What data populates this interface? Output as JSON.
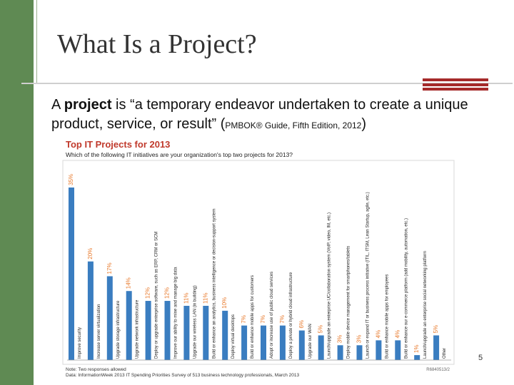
{
  "slide": {
    "title": "What Is a Project?",
    "body_lead": "A ",
    "body_bold": "project",
    "body_rest": " is “a temporary endeavor undertaken to create a unique product, service, or result” (",
    "body_cite": "PMBOK® Guide, Fifth Edition, 2012",
    "body_close": ")",
    "page_number": "5",
    "colors": {
      "sidebar": "#5f8a53",
      "accent": "#a52a2a",
      "bar": "#3a7dc0",
      "label": "#e8792b"
    }
  },
  "chart_data": {
    "type": "bar",
    "title": "Top IT Projects for 2013",
    "subtitle": "Which of the following IT initiatives are your organization's top two projects for 2013?",
    "note": "Note: Two responses allowed",
    "source": "Data: InformationWeek 2013 IT Spending Priorities Survey of 513 business technology professionals, March 2013",
    "code": "R6840513/2",
    "ylim": [
      0,
      35
    ],
    "categories": [
      "Improve security",
      "Increase server virtualization",
      "Upgrade storage infrastructure",
      "Upgrade network infrastructure",
      "Deploy or upgrade enterprise software, such as ERP, CRM or SCM",
      "Improve our ability to mine and manage big data",
      "Upgrade our wireless LAN (in building)",
      "Build or enhance an analytics, business intelligence or decision-support system",
      "Deploy virtual desktops",
      "Build or enhance mobile apps for customers",
      "Adopt or increase use of public cloud services",
      "Deploy a private or hybrid cloud infrastructure",
      "Upgrade our WAN",
      "Launch/upgrade an enterprise UC/collaboration system (VoIP, video, IM, etc.)",
      "Deploy mobile device management for smartphones/tablets",
      "Launch or expand IT or business process initiative (ITIL, ITSM, Lean Startup, agile, etc.)",
      "Build or enhance mobile apps for employees",
      "Build or enhance our e-commerce platform (add mobility, automation, etc.)",
      "Launch/upgrade an enterprise social networking platform",
      "Other"
    ],
    "values": [
      35,
      20,
      17,
      14,
      12,
      12,
      11,
      11,
      10,
      7,
      7,
      7,
      6,
      5,
      3,
      3,
      4,
      4,
      1,
      5
    ],
    "value_labels": [
      "35%",
      "20%",
      "17%",
      "14%",
      "12%",
      "12%",
      "11%",
      "11%",
      "10%",
      "7%",
      "7%",
      "7%",
      "6%",
      "5%",
      "3%",
      "3%",
      "4%",
      "4%",
      "1%",
      "5%"
    ]
  }
}
